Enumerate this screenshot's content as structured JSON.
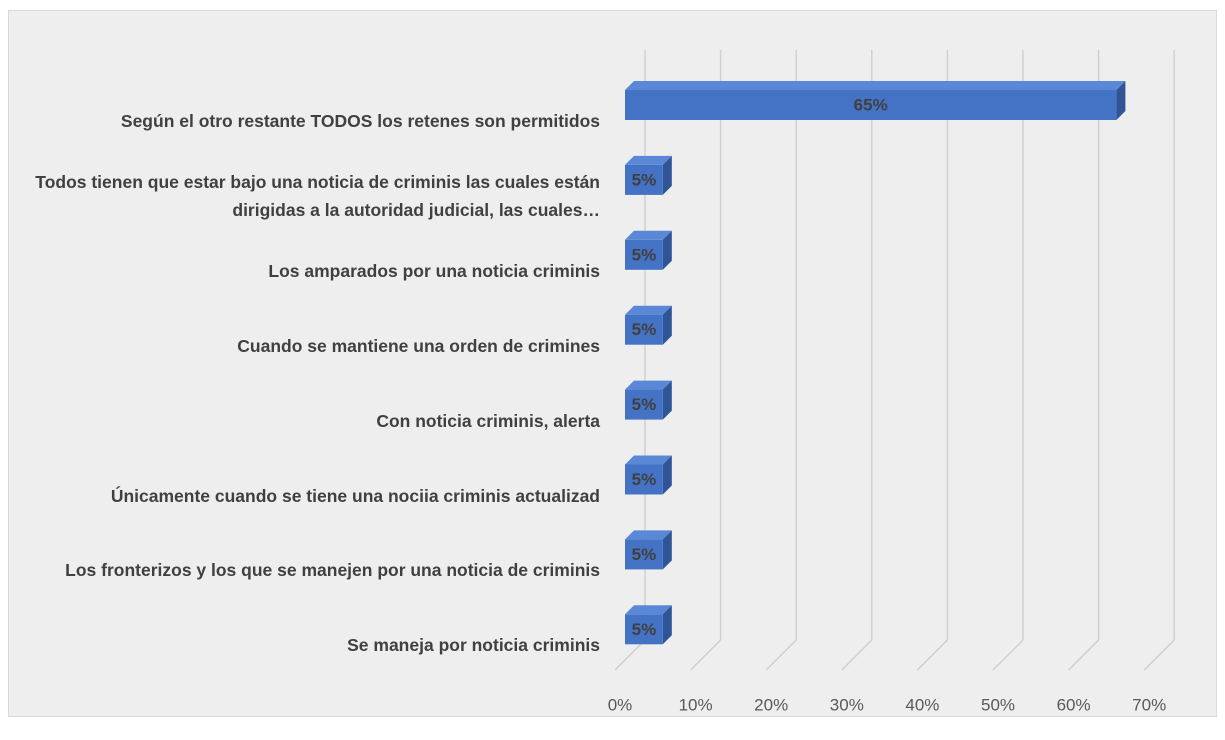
{
  "chart_data": {
    "type": "bar3d",
    "orientation": "horizontal",
    "categories": [
      "Según el otro restante TODOS los retenes son permitidos",
      "Todos tienen que estar bajo una noticia de criminis las cuales están dirigidas a la autoridad judicial, las cuales…",
      "Los amparados por una noticia criminis",
      "Cuando se mantiene una orden de crimines",
      "Con noticia criminis, alerta",
      "Únicamente cuando se tiene una nociia criminis actualizad",
      "Los fronterizos y los que se manejen por una noticia de criminis",
      "Se maneja por noticia criminis"
    ],
    "values": [
      65,
      5,
      5,
      5,
      5,
      5,
      5,
      5
    ],
    "value_labels": [
      "65%",
      "5%",
      "5%",
      "5%",
      "5%",
      "5%",
      "5%",
      "5%"
    ],
    "color": "#4472c4",
    "xlim": [
      0,
      70
    ],
    "xticks": [
      {
        "value": 0,
        "label": "0%"
      },
      {
        "value": 10,
        "label": "10%"
      },
      {
        "value": 20,
        "label": "20%"
      },
      {
        "value": 30,
        "label": "30%"
      },
      {
        "value": 40,
        "label": "40%"
      },
      {
        "value": 50,
        "label": "50%"
      },
      {
        "value": 60,
        "label": "60%"
      },
      {
        "value": 70,
        "label": "70%"
      }
    ],
    "grid": true
  }
}
